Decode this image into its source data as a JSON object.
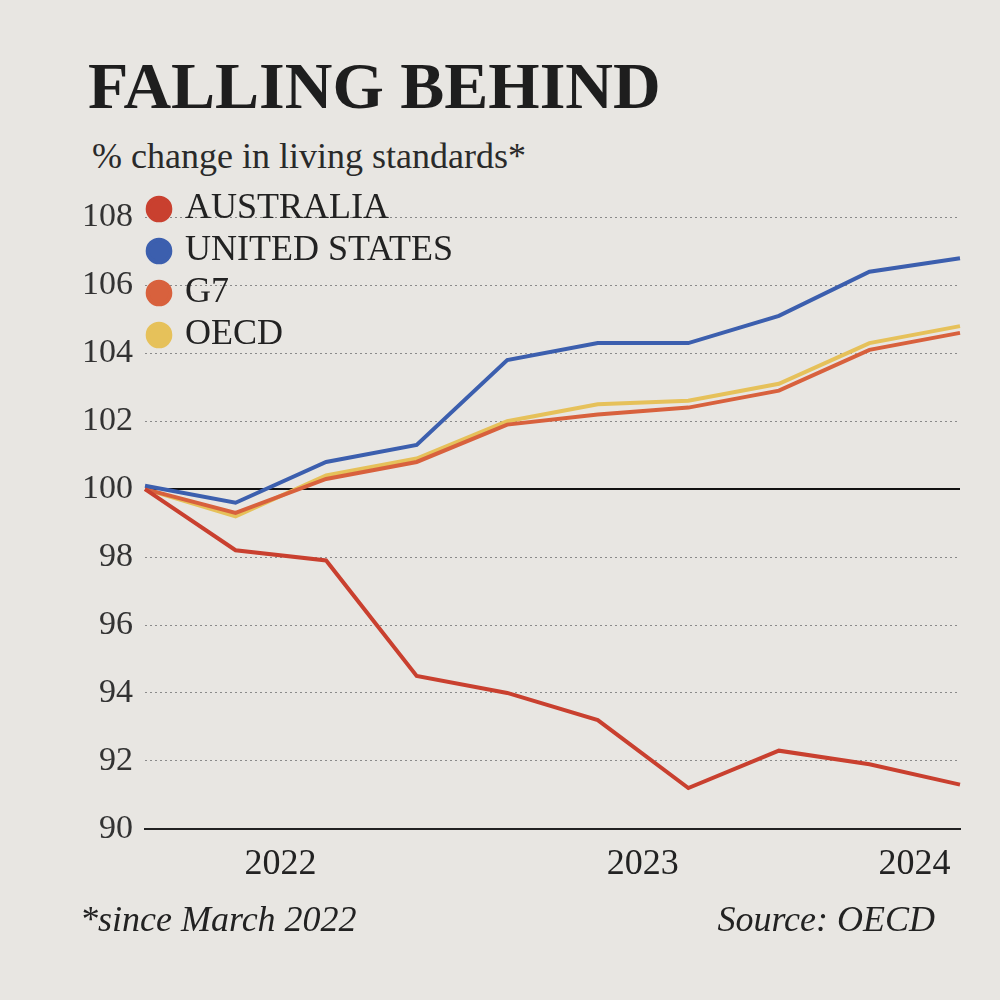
{
  "chart_data": {
    "type": "line",
    "title": "FALLING BEHIND",
    "subtitle": "% change in living standards*",
    "footnote": "*since March 2022",
    "source": "Source: OECD",
    "categories": [
      null,
      "2022",
      null,
      null,
      null,
      "2023",
      null,
      null,
      "2024",
      null
    ],
    "series": [
      {
        "name": "AUSTRALIA",
        "color": "#c9402f",
        "values": [
          100,
          98.2,
          97.9,
          94.5,
          94.0,
          93.2,
          91.2,
          92.3,
          91.9,
          91.3
        ]
      },
      {
        "name": "UNITED STATES",
        "color": "#3c5fae",
        "values": [
          100.1,
          99.6,
          100.8,
          101.3,
          103.8,
          104.3,
          104.3,
          105.1,
          106.4,
          106.8
        ]
      },
      {
        "name": "G7",
        "color": "#d8613d",
        "values": [
          100,
          99.3,
          100.3,
          100.8,
          101.9,
          102.2,
          102.4,
          102.9,
          104.1,
          104.6
        ]
      },
      {
        "name": "OECD",
        "color": "#e6c15a",
        "values": [
          100,
          99.2,
          100.4,
          100.9,
          102.0,
          102.5,
          102.6,
          103.1,
          104.3,
          104.8
        ]
      }
    ],
    "ylim": [
      90,
      108
    ],
    "yticks": [
      90,
      92,
      94,
      96,
      98,
      100,
      102,
      104,
      106,
      108
    ],
    "grid": true,
    "legend": "top-left"
  }
}
